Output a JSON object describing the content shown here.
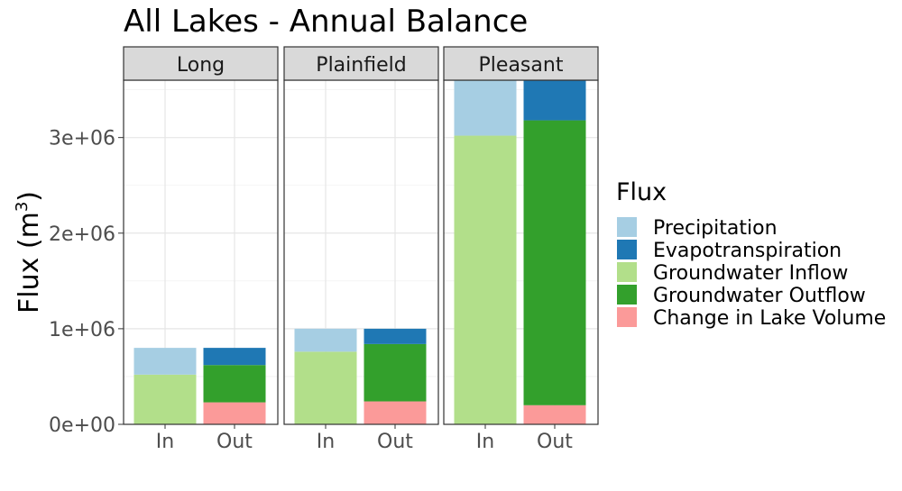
{
  "chart_data": {
    "type": "bar",
    "stacked": true,
    "title": "All Lakes - Annual Balance",
    "ylabel": "Flux (m³)",
    "ylabel_base": "Flux (m",
    "ylabel_sup": "3",
    "ylabel_close": ")",
    "xlabel": "",
    "ylim": [
      0,
      3600000
    ],
    "y_ticks": [
      0,
      1000000,
      2000000,
      3000000
    ],
    "y_tick_labels": [
      "0e+00",
      "1e+06",
      "2e+06",
      "3e+06"
    ],
    "categories": [
      "In",
      "Out"
    ],
    "grid": true,
    "legend_position": "right",
    "legend_title": "Flux",
    "series": [
      {
        "name": "Precipitation",
        "color": "#a6cee3"
      },
      {
        "name": "Evapotranspiration",
        "color": "#1f78b4"
      },
      {
        "name": "Groundwater Inflow",
        "color": "#b2df8a"
      },
      {
        "name": "Groundwater Outflow",
        "color": "#33a02c"
      },
      {
        "name": "Change in Lake Volume",
        "color": "#fb9a99"
      }
    ],
    "facets": [
      {
        "name": "Long",
        "bars": {
          "In": {
            "Groundwater Inflow": 520000,
            "Precipitation": 280000
          },
          "Out": {
            "Change in Lake Volume": 230000,
            "Groundwater Outflow": 390000,
            "Evapotranspiration": 180000
          }
        }
      },
      {
        "name": "Plainfield",
        "bars": {
          "In": {
            "Groundwater Inflow": 760000,
            "Precipitation": 240000
          },
          "Out": {
            "Change in Lake Volume": 240000,
            "Groundwater Outflow": 600000,
            "Evapotranspiration": 160000
          }
        }
      },
      {
        "name": "Pleasant",
        "bars": {
          "In": {
            "Groundwater Inflow": 3020000,
            "Precipitation": 600000
          },
          "Out": {
            "Change in Lake Volume": 200000,
            "Groundwater Outflow": 2980000,
            "Evapotranspiration": 440000
          }
        }
      }
    ]
  }
}
